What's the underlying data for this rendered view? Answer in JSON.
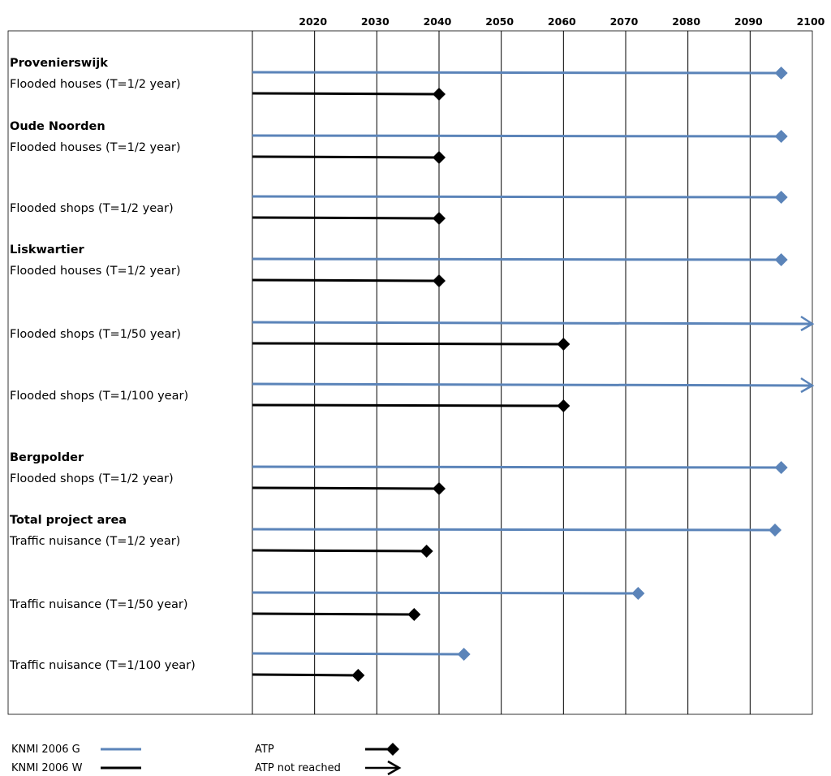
{
  "chart_data": {
    "type": "timeline",
    "x_axis": {
      "ticks": [
        2020,
        2030,
        2040,
        2050,
        2060,
        2070,
        2080,
        2090,
        2100
      ],
      "range": [
        2010,
        2100
      ]
    },
    "colors": {
      "G": "#5b84b9",
      "W": "#000000"
    },
    "groups": [
      {
        "name": "Provenierswijk",
        "rows": [
          {
            "label": "Flooded houses (T=1/2 year)",
            "G": {
              "end": 2095,
              "marker": "diamond"
            },
            "W": {
              "end": 2040,
              "marker": "diamond"
            }
          }
        ]
      },
      {
        "name": "Oude Noorden",
        "rows": [
          {
            "label": "Flooded houses (T=1/2 year)",
            "G": {
              "end": 2095,
              "marker": "diamond"
            },
            "W": {
              "end": 2040,
              "marker": "diamond"
            }
          },
          {
            "label": "Flooded shops (T=1/2 year)",
            "G": {
              "end": 2095,
              "marker": "diamond"
            },
            "W": {
              "end": 2040,
              "marker": "diamond"
            }
          }
        ]
      },
      {
        "name": "Liskwartier",
        "rows": [
          {
            "label": "Flooded houses (T=1/2 year)",
            "G": {
              "end": 2095,
              "marker": "diamond"
            },
            "W": {
              "end": 2040,
              "marker": "diamond"
            }
          },
          {
            "label": "Flooded shops (T=1/50 year)",
            "G": {
              "end": 2100,
              "marker": "arrow"
            },
            "W": {
              "end": 2060,
              "marker": "diamond"
            }
          },
          {
            "label": "Flooded shops (T=1/100 year)",
            "G": {
              "end": 2100,
              "marker": "arrow"
            },
            "W": {
              "end": 2060,
              "marker": "diamond"
            }
          }
        ]
      },
      {
        "name": "Bergpolder",
        "rows": [
          {
            "label": "Flooded shops (T=1/2 year)",
            "G": {
              "end": 2095,
              "marker": "diamond"
            },
            "W": {
              "end": 2040,
              "marker": "diamond"
            }
          }
        ]
      },
      {
        "name": "Total project area",
        "rows": [
          {
            "label": "Traffic  nuisance (T=1/2 year)",
            "G": {
              "end": 2094,
              "marker": "diamond"
            },
            "W": {
              "end": 2038,
              "marker": "diamond"
            }
          },
          {
            "label": "Traffic nuisance (T=1/50 year)",
            "G": {
              "end": 2072,
              "marker": "diamond"
            },
            "W": {
              "end": 2036,
              "marker": "diamond"
            }
          },
          {
            "label": "Traffic nuisance (T=1/100 year)",
            "G": {
              "end": 2044,
              "marker": "diamond"
            },
            "W": {
              "end": 2027,
              "marker": "diamond"
            }
          }
        ]
      }
    ],
    "legend": {
      "series": [
        {
          "key": "G",
          "label": "KNMI 2006 G"
        },
        {
          "key": "W",
          "label": "KNMI 2006 W"
        }
      ],
      "markers": [
        {
          "type": "diamond",
          "label": "ATP"
        },
        {
          "type": "arrow",
          "label": "ATP not reached"
        }
      ]
    }
  }
}
